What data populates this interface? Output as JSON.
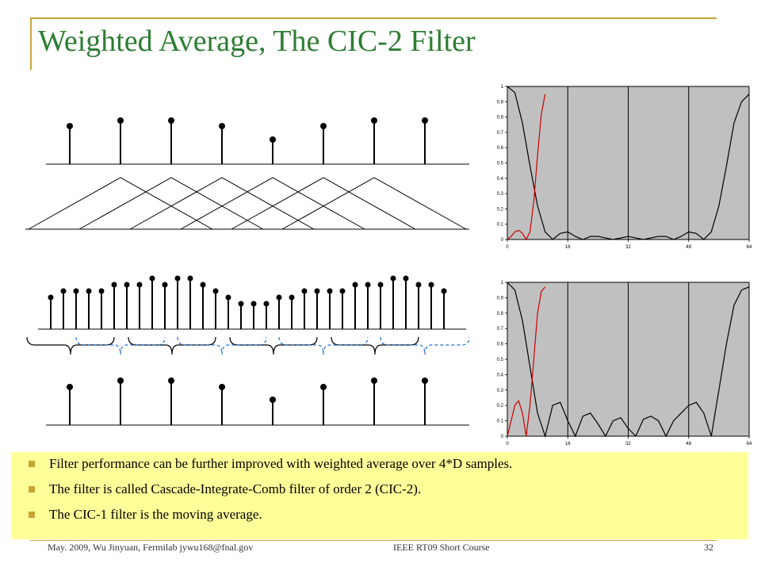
{
  "slide": {
    "title": "Weighted Average, The CIC-2 Filter",
    "bullets": [
      "Filter performance can be further improved with weighted average over 4*D samples.",
      "The filter is called Cascade-Integrate-Comb filter of order 2 (CIC-2).",
      "The CIC-1 filter is the moving average."
    ],
    "footer": {
      "left": "May. 2009, Wu Jinyuan, Fermilab jywu168@fnal.gov",
      "center": "IEEE RT09 Short Course",
      "page": "32"
    }
  },
  "colors": {
    "title": "#2e7d32",
    "accent_gold": "#c8a338",
    "bullet_bg": "#ffff99",
    "plot_bg": "#c0c0c0",
    "curve_red": "#cc0000",
    "brace_blue": "#1f6fd1"
  },
  "chart_data": [
    {
      "type": "line",
      "xticks": [
        "0",
        "16",
        "32",
        "48",
        "64"
      ],
      "yticks": [
        "0",
        "0.1",
        "0.2",
        "0.3",
        "0.4",
        "0.5",
        "0.6",
        "0.7",
        "0.8",
        "0.9",
        "1"
      ],
      "xlim": [
        0,
        64
      ],
      "ylim": [
        0,
        1
      ],
      "grid": "vertical lines at 16, 32, 48",
      "series": [
        {
          "color": "#000000",
          "x": [
            0,
            2,
            4,
            6,
            8,
            10,
            12,
            14,
            16,
            18,
            20,
            22,
            24,
            26,
            28,
            30,
            32,
            34,
            36,
            38,
            40,
            42,
            44,
            46,
            48,
            50,
            52,
            54,
            56,
            58,
            60,
            62,
            64
          ],
          "y": [
            1,
            0.96,
            0.76,
            0.48,
            0.22,
            0.05,
            0,
            0.04,
            0.05,
            0.02,
            0,
            0.02,
            0.02,
            0.01,
            0,
            0.01,
            0.02,
            0.01,
            0,
            0.01,
            0.02,
            0.02,
            0,
            0.02,
            0.05,
            0.04,
            0,
            0.05,
            0.22,
            0.48,
            0.76,
            0.9,
            0.95
          ]
        },
        {
          "color": "#cc0000",
          "x": [
            0,
            1,
            2,
            3,
            4,
            5,
            6,
            7,
            8,
            9,
            10
          ],
          "y": [
            0,
            0.02,
            0.05,
            0.06,
            0.04,
            0,
            0.05,
            0.25,
            0.55,
            0.82,
            0.95
          ]
        }
      ]
    },
    {
      "type": "line",
      "xticks": [
        "0",
        "16",
        "32",
        "48",
        "64"
      ],
      "yticks": [
        "0",
        "0.1",
        "0.2",
        "0.3",
        "0.4",
        "0.5",
        "0.6",
        "0.7",
        "0.8",
        "0.9",
        "1"
      ],
      "xlim": [
        0,
        64
      ],
      "ylim": [
        0,
        1
      ],
      "grid": "vertical lines at 16, 32, 48",
      "series": [
        {
          "color": "#000000",
          "x": [
            0,
            2,
            4,
            6,
            8,
            10,
            12,
            14,
            16,
            18,
            20,
            22,
            24,
            26,
            28,
            30,
            32,
            34,
            36,
            38,
            40,
            42,
            44,
            46,
            48,
            50,
            52,
            54,
            56,
            58,
            60,
            62,
            64
          ],
          "y": [
            1,
            0.95,
            0.75,
            0.45,
            0.15,
            0,
            0.2,
            0.22,
            0.1,
            0,
            0.13,
            0.15,
            0.08,
            0,
            0.1,
            0.12,
            0.05,
            0,
            0.11,
            0.13,
            0.1,
            0,
            0.1,
            0.15,
            0.2,
            0.22,
            0.15,
            0,
            0.3,
            0.6,
            0.85,
            0.95,
            0.97
          ]
        },
        {
          "color": "#cc0000",
          "x": [
            0,
            1,
            2,
            3,
            4,
            5,
            6,
            7,
            8,
            9,
            10
          ],
          "y": [
            0,
            0.1,
            0.2,
            0.23,
            0.15,
            0,
            0.2,
            0.5,
            0.8,
            0.94,
            0.97
          ]
        }
      ]
    }
  ]
}
